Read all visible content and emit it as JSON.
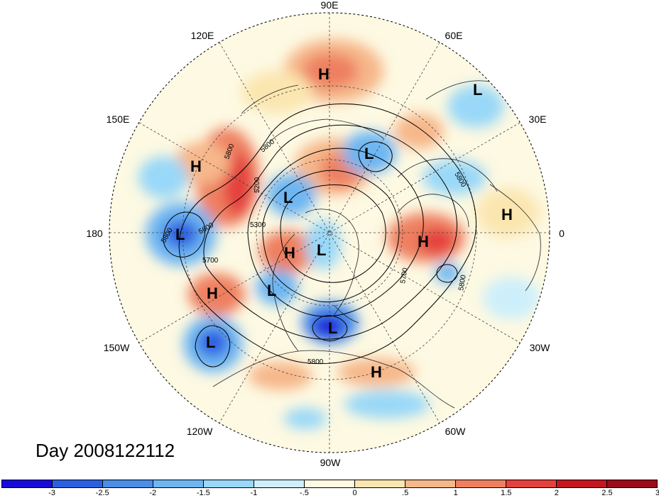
{
  "title": "Day 2008122112",
  "lon_labels": {
    "north": "90E",
    "ne60": "60E",
    "ne30": "30E",
    "east": "0",
    "se30": "30W",
    "se60": "60W",
    "south": "90W",
    "sw120": "120W",
    "sw150": "150W",
    "west": "180",
    "nw150": "150E",
    "nw120": "120E"
  },
  "pressure_centers": [
    {
      "label": "H",
      "region": "siberia-north"
    },
    {
      "label": "L",
      "region": "europe-north"
    },
    {
      "label": "L",
      "region": "kara-sea"
    },
    {
      "label": "H",
      "region": "bering-sea"
    },
    {
      "label": "L",
      "region": "east-siberia"
    },
    {
      "label": "L",
      "region": "aleutians"
    },
    {
      "label": "H",
      "region": "north-atlantic"
    },
    {
      "label": "H",
      "region": "alaska"
    },
    {
      "label": "L",
      "region": "arctic"
    },
    {
      "label": "L",
      "region": "gulf-of-alaska"
    },
    {
      "label": "H",
      "region": "north-pacific-east"
    },
    {
      "label": "L",
      "region": "hudson-bay"
    },
    {
      "label": "L",
      "region": "hawaii"
    },
    {
      "label": "H",
      "region": "gulf-of-mexico"
    },
    {
      "label": "H",
      "region": "africa-west"
    }
  ],
  "contour_labels": [
    "5800",
    "5200",
    "5300",
    "5600",
    "5700",
    "5800",
    "5800",
    "5700",
    "5800",
    "5800",
    "5800"
  ],
  "colorbar": {
    "colors": [
      "#1a0ad8",
      "#2c5fe0",
      "#4a8ee8",
      "#6db6f2",
      "#99d8f8",
      "#cdeffb",
      "#fdf9e2",
      "#fbe6b0",
      "#f6b78a",
      "#ee8060",
      "#e4413d",
      "#c3161f",
      "#9b0b1a"
    ],
    "ticks": [
      "-3",
      "-2.5",
      "-2",
      "-1.5",
      "-1",
      "-.5",
      "0",
      ".5",
      "1",
      "1.5",
      "2",
      "2.5",
      "3"
    ]
  }
}
